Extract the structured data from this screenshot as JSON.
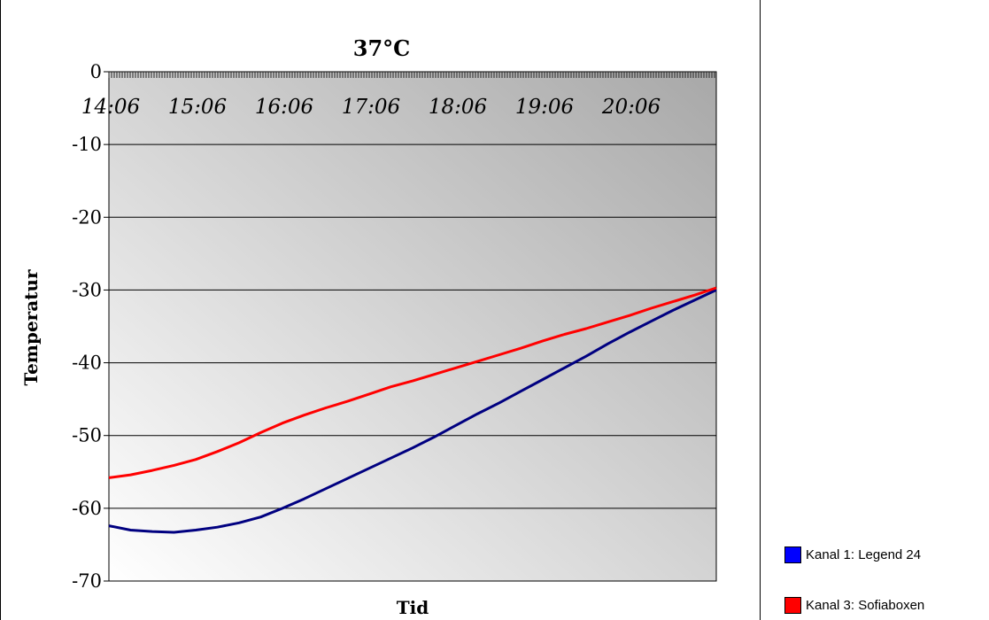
{
  "chart_data": {
    "type": "line",
    "title": "37°C",
    "xlabel": "Tid",
    "ylabel": "Temperatur",
    "ylim": [
      -70,
      0
    ],
    "yticks": [
      "0",
      "-10",
      "-20",
      "-30",
      "-40",
      "-50",
      "-60",
      "-70"
    ],
    "ytick_values": [
      0,
      -10,
      -20,
      -30,
      -40,
      -50,
      -60,
      -70
    ],
    "xtick_labels": [
      "14:06",
      "15:06",
      "16:06",
      "17:06",
      "18:06",
      "19:06",
      "20:06"
    ],
    "x_unit": "hours since 14:06",
    "xlim": [
      0,
      7.0
    ],
    "grid": true,
    "legend_position": "bottom-right",
    "series": [
      {
        "name": "Kanal 1: Legend 24",
        "color": "#000080",
        "x": [
          0,
          0.25,
          0.5,
          0.75,
          1.0,
          1.25,
          1.5,
          1.75,
          2.0,
          2.25,
          2.5,
          2.75,
          3.0,
          3.25,
          3.5,
          3.75,
          4.0,
          4.25,
          4.5,
          4.75,
          5.0,
          5.25,
          5.5,
          5.75,
          6.0,
          6.25,
          6.5,
          6.75,
          7.0
        ],
        "y": [
          -62.4,
          -63.0,
          -63.2,
          -63.3,
          -63.0,
          -62.6,
          -62.0,
          -61.2,
          -60.0,
          -58.7,
          -57.3,
          -55.9,
          -54.5,
          -53.1,
          -51.7,
          -50.2,
          -48.6,
          -47.0,
          -45.5,
          -43.9,
          -42.3,
          -40.7,
          -39.1,
          -37.4,
          -35.8,
          -34.3,
          -32.8,
          -31.4,
          -30.0
        ]
      },
      {
        "name": "Kanal 3: Sofiaboxen",
        "color": "#ff0000",
        "x": [
          0,
          0.25,
          0.5,
          0.75,
          1.0,
          1.25,
          1.5,
          1.75,
          2.0,
          2.25,
          2.5,
          2.75,
          3.0,
          3.25,
          3.5,
          3.75,
          4.0,
          4.25,
          4.5,
          4.75,
          5.0,
          5.25,
          5.5,
          5.75,
          6.0,
          6.25,
          6.5,
          6.75,
          7.0
        ],
        "y": [
          -55.8,
          -55.4,
          -54.8,
          -54.1,
          -53.3,
          -52.2,
          -51.0,
          -49.6,
          -48.3,
          -47.2,
          -46.2,
          -45.3,
          -44.3,
          -43.3,
          -42.5,
          -41.6,
          -40.7,
          -39.8,
          -38.9,
          -38.0,
          -37.0,
          -36.1,
          -35.3,
          -34.4,
          -33.5,
          -32.5,
          -31.6,
          -30.7,
          -29.7
        ]
      }
    ]
  }
}
